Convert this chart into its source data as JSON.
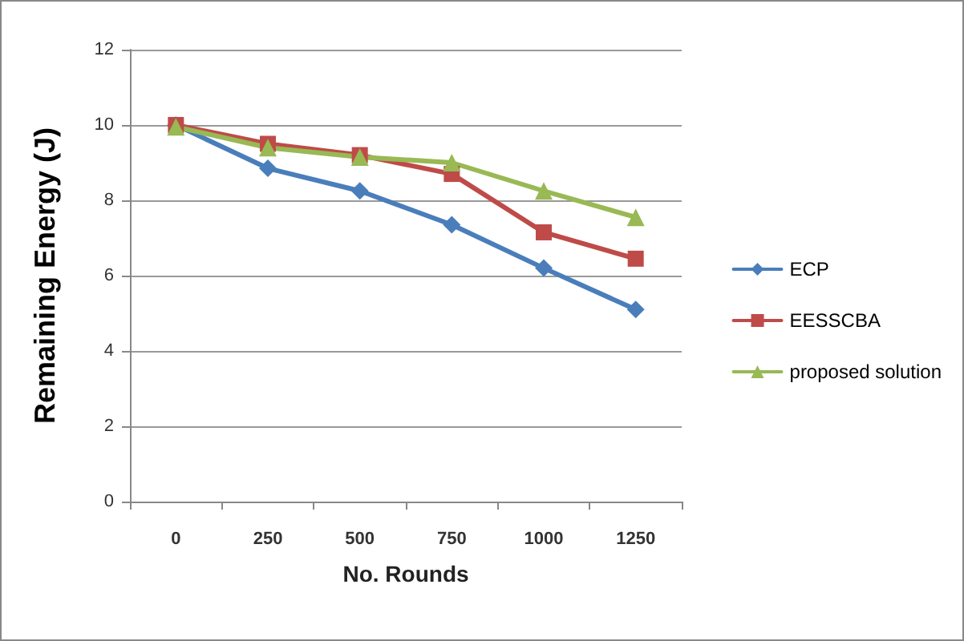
{
  "chart_data": {
    "type": "line",
    "xlabel": "No. Rounds",
    "ylabel": "Remaining Energy (J)",
    "categories": [
      "0",
      "250",
      "500",
      "750",
      "1000",
      "1250"
    ],
    "series": [
      {
        "name": "ECP",
        "color": "#4a7ebb",
        "marker": "diamond",
        "values": [
          10,
          8.85,
          8.25,
          7.35,
          6.2,
          5.1
        ]
      },
      {
        "name": "EESSCBA",
        "color": "#be4b48",
        "marker": "square",
        "values": [
          10,
          9.5,
          9.2,
          8.7,
          7.15,
          6.45
        ]
      },
      {
        "name": "proposed solution",
        "color": "#98b954",
        "marker": "triangle",
        "values": [
          9.95,
          9.4,
          9.15,
          9.0,
          8.25,
          7.55
        ]
      }
    ],
    "ylim": [
      0,
      12
    ],
    "yticks": [
      0,
      2,
      4,
      6,
      8,
      10,
      12
    ],
    "grid": "y",
    "legend": "right",
    "line_style": "solid"
  }
}
